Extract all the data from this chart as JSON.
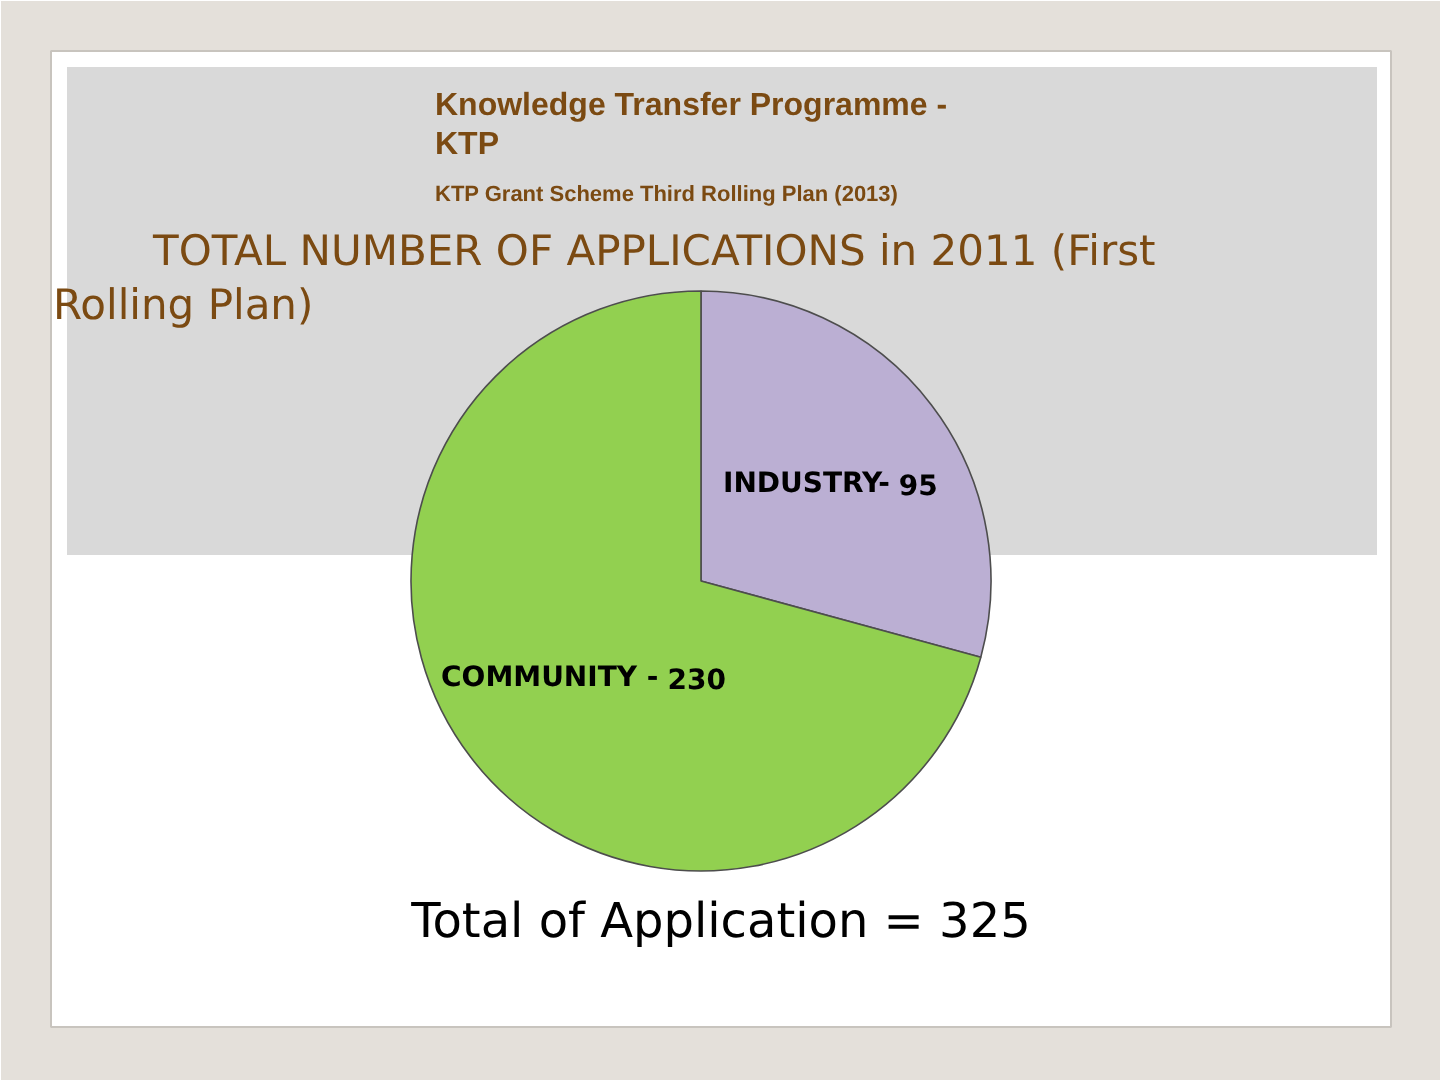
{
  "chart_data": {
    "type": "pie",
    "title": "Knowledge Transfer Programme - KTP",
    "subtitle": "KTP Grant Scheme Third Rolling Plan (2013)",
    "annotations": [
      "TOTAL NUMBER OF APPLICATIONS in 2011 (First Rolling Plan)",
      "Total of Application = 325"
    ],
    "categories": [
      "INDUSTRY-",
      "COMMUNITY -"
    ],
    "values": [
      95,
      230
    ],
    "colors": [
      "#bbafd3",
      "#92d050"
    ],
    "data_labels": true
  }
}
